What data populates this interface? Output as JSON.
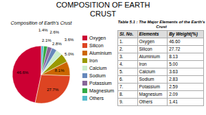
{
  "chart_data": {
    "type": "pie",
    "title": "COMPOSITION OF EARTH",
    "subtitle": "CRUST",
    "annotations": [
      "Composition of Earth's Crust"
    ],
    "categories": [
      "Oxygen",
      "Silicon",
      "Aluminium",
      "Iron",
      "Calcium",
      "Sodium",
      "Potassium",
      "Magnesium",
      "Others"
    ],
    "values": [
      46.6,
      27.7,
      8.1,
      5.0,
      3.6,
      2.8,
      2.6,
      2.1,
      1.4
    ],
    "value_labels": [
      "46.6%",
      "27.7%",
      "8.1%",
      "5.0%",
      "3.6%",
      "2.8%",
      "2.6%",
      "2.1%",
      "1.4%"
    ],
    "colors": [
      "#cc0033",
      "#dd4422",
      "#cc6600",
      "#999900",
      "#cceecc",
      "#6688bb",
      "#886699",
      "#33aa44",
      "#55bbcc"
    ],
    "data_labels": true,
    "legend": "right",
    "table": {
      "title": "Table 5.1 : The Major Elements of the Earth's Crust",
      "columns": [
        "Sl. No.",
        "Elements",
        "By Weight(%)"
      ],
      "rows": [
        [
          "1.",
          "Oxygen",
          "46.60"
        ],
        [
          "2.",
          "Silicon",
          "27.72"
        ],
        [
          "3.",
          "Aluminium",
          "8.13"
        ],
        [
          "4.",
          "Iron",
          "5.00"
        ],
        [
          "5.",
          "Calcium",
          "3.63"
        ],
        [
          "6.",
          "Sodium",
          "2.83"
        ],
        [
          "7.",
          "Potassium",
          "2.59"
        ],
        [
          "8.",
          "Magnesium",
          "2.09"
        ],
        [
          "9.",
          "Others",
          "1.41"
        ]
      ]
    }
  }
}
